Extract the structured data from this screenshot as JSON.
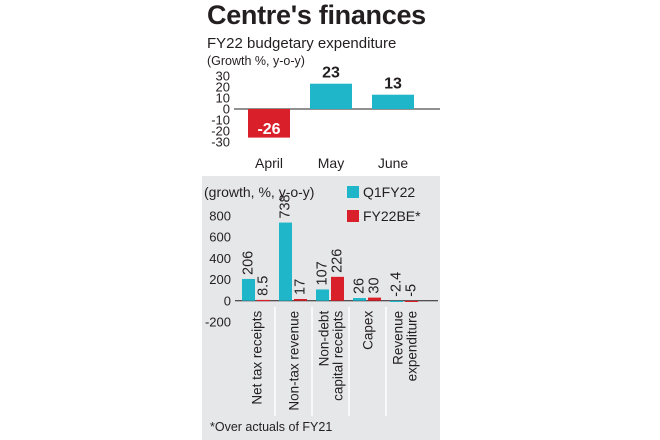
{
  "header": {
    "title": "Centre's finances",
    "subtitle": "FY22 budgetary expenditure",
    "unit_note": "(Growth %, y-o-y)"
  },
  "colors": {
    "positive": "#1fb6c9",
    "negative": "#d9202a",
    "panel_bg": "#e6e7e8",
    "text": "#231f20"
  },
  "chart_data": [
    {
      "type": "bar",
      "title": "FY22 budgetary expenditure",
      "ylabel": "(Growth %, y-o-y)",
      "categories": [
        "April",
        "May",
        "June"
      ],
      "values": [
        -26,
        23,
        13
      ],
      "value_labels": [
        "-26",
        "23",
        "13"
      ],
      "yticks": [
        30,
        20,
        10,
        0,
        -10,
        -20,
        -30
      ],
      "ylim": [
        -30,
        30
      ],
      "grid": false
    },
    {
      "type": "bar",
      "ylabel": "(growth, %, y-o-y)",
      "categories": [
        "Net tax receipts",
        "Non-tax revenue",
        "Non-debt capital receipts",
        "Capex",
        "Revenue expenditure"
      ],
      "category_lines": [
        [
          "Net tax receipts"
        ],
        [
          "Non-tax revenue"
        ],
        [
          "Non-debt",
          "capital receipts"
        ],
        [
          "Capex"
        ],
        [
          "Revenue",
          "expenditure"
        ]
      ],
      "series": [
        {
          "name": "Q1FY22",
          "values": [
            206,
            738,
            107,
            26,
            -2.4
          ],
          "labels": [
            "206",
            "738",
            "107",
            "26",
            "-2.4"
          ]
        },
        {
          "name": "FY22BE*",
          "values": [
            8.5,
            17,
            226,
            30,
            -5
          ],
          "labels": [
            "8.5",
            "17",
            "226",
            "30",
            "-5"
          ]
        }
      ],
      "yticks": [
        800,
        600,
        400,
        200,
        0,
        -200
      ],
      "ylim": [
        -200,
        800
      ],
      "legend": "top-right",
      "grid": false,
      "footnote": "*Over actuals of FY21"
    }
  ]
}
